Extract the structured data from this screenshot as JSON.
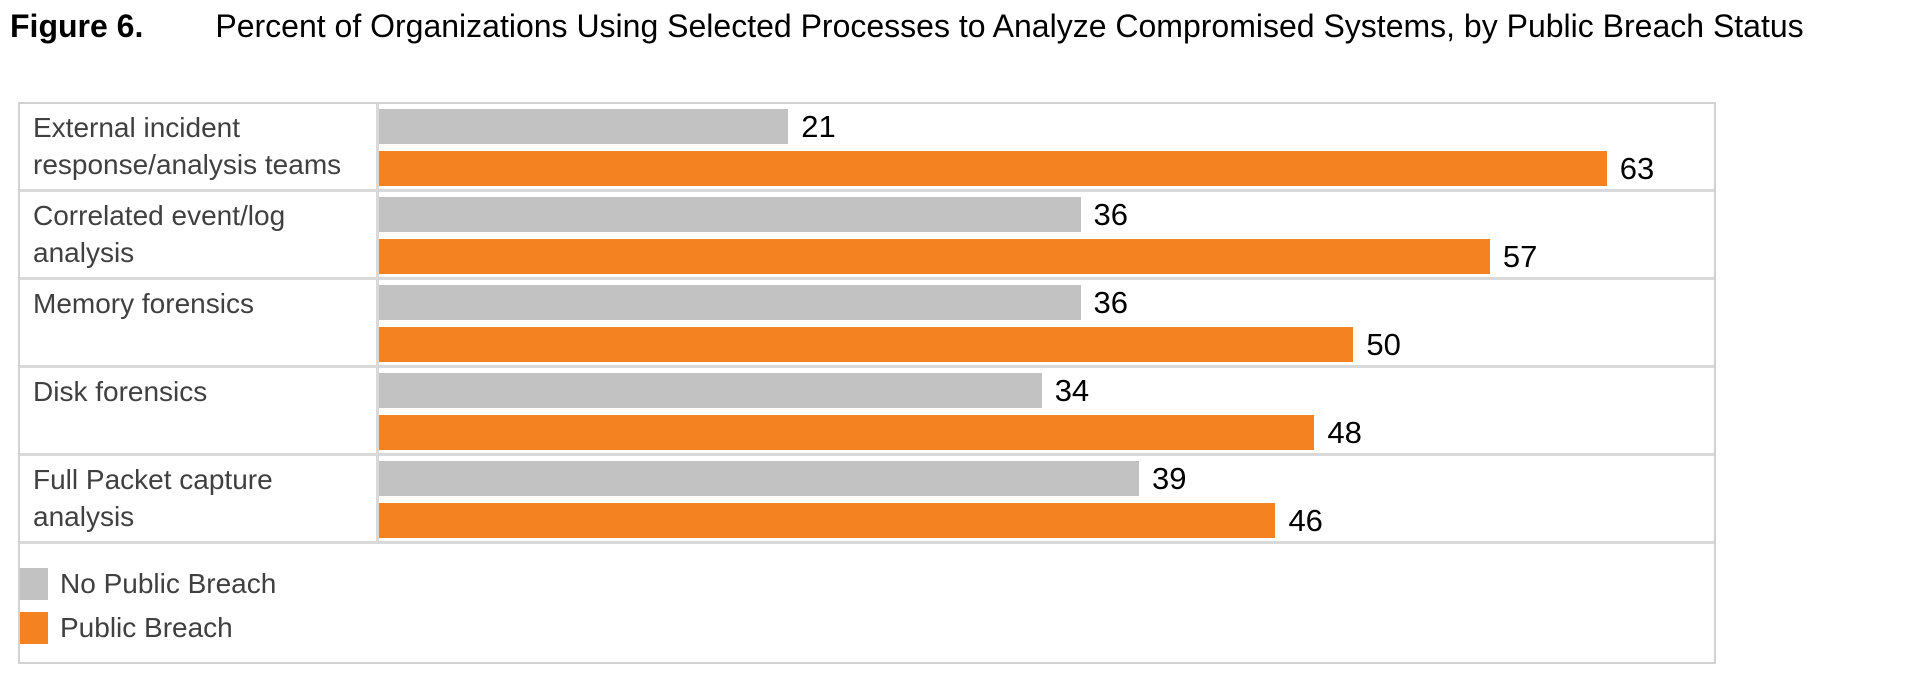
{
  "figure_label": "Figure 6.",
  "title": "Percent of Organizations Using Selected Processes to Analyze Compromised Systems, by Public Breach Status",
  "colors": {
    "no_public_breach": "#c2c2c2",
    "public_breach": "#f58220",
    "gridline": "#d9d9d9",
    "category_text": "#404040",
    "value_text": "#000000"
  },
  "legend": {
    "items": [
      {
        "label": "No Public Breach",
        "series_key": "no_public_breach"
      },
      {
        "label": "Public Breach",
        "series_key": "public_breach"
      }
    ]
  },
  "chart_data": {
    "type": "bar",
    "orientation": "horizontal",
    "title": "Percent of Organizations Using Selected Processes to Analyze Compromised Systems, by Public Breach Status",
    "categories": [
      "External incident response/analysis teams",
      "Correlated event/log analysis",
      "Memory forensics",
      "Disk forensics",
      "Full Packet capture analysis"
    ],
    "series": [
      {
        "name": "No Public Breach",
        "key": "no_public_breach",
        "color": "#c2c2c2",
        "values": [
          21,
          36,
          36,
          34,
          39
        ]
      },
      {
        "name": "Public Breach",
        "key": "public_breach",
        "color": "#f58220",
        "values": [
          63,
          57,
          50,
          48,
          46
        ]
      }
    ],
    "value_unit": "percent",
    "xlim": [
      0,
      68.5
    ],
    "grid": false,
    "data_labels": true,
    "legend_position": "bottom-left"
  }
}
